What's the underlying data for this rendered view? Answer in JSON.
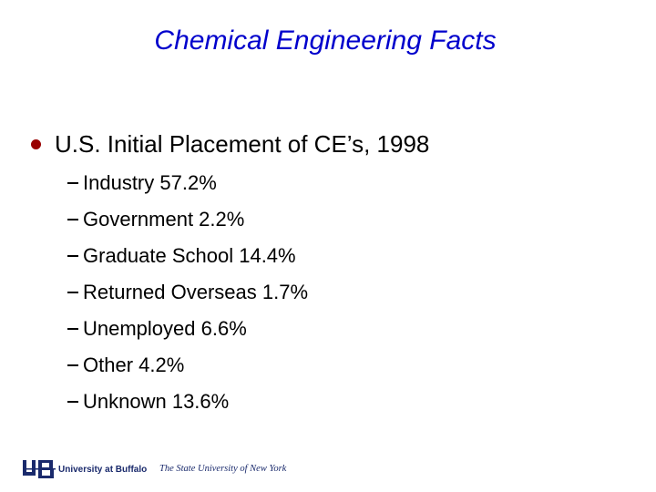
{
  "title": "Chemical Engineering Facts",
  "bullet": {
    "text": "U.S. Initial Placement of CE’s, 1998",
    "items": [
      "Industry 57.2%",
      "Government 2.2%",
      "Graduate School 14.4%",
      "Returned Overseas 1.7%",
      "Unemployed 6.6%",
      "Other 4.2%",
      "Unknown 13.6%"
    ]
  },
  "footer": {
    "university": "University at Buffalo",
    "system": "The State University of New York"
  }
}
